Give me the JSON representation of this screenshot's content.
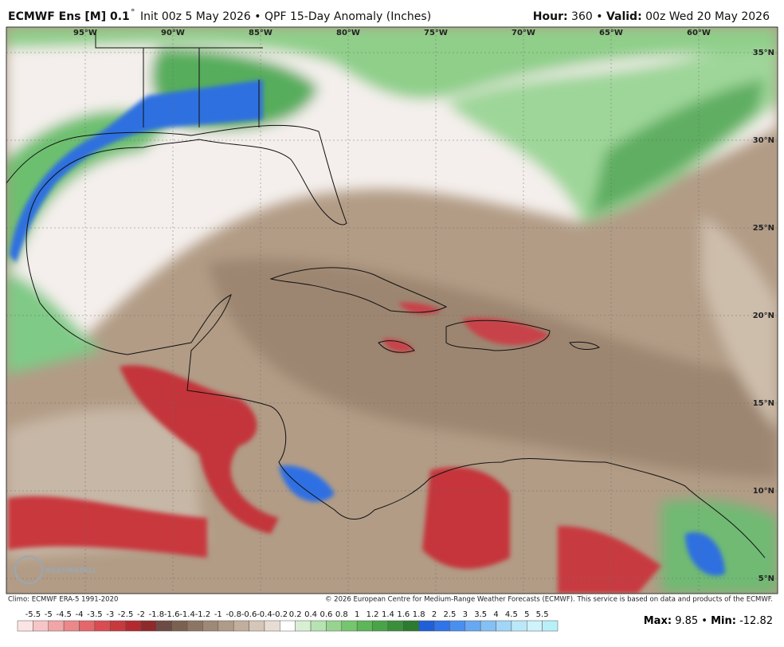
{
  "header": {
    "model": "ECMWF Ens [M] 0.1",
    "degree": "°",
    "init": "Init 00z 5 May 2026 • QPF 15-Day Anomaly (Inches)",
    "hour_label": "Hour:",
    "hour": "360 •",
    "valid_label": "Valid:",
    "valid": "00z Wed 20 May 2026"
  },
  "map": {
    "lon_labels": [
      "95°W",
      "90°W",
      "85°W",
      "80°W",
      "75°W",
      "70°W",
      "65°W",
      "60°W"
    ],
    "lat_labels": [
      "35°N",
      "30°N",
      "25°N",
      "20°N",
      "15°N",
      "10°N",
      "5°N"
    ],
    "logo": "WEATHERBELL"
  },
  "footer": {
    "climo": "Climo: ECMWF ERA-5 1991-2020",
    "copyright": "© 2026 European Centre for Medium-Range Weather Forecasts (ECMWF). This service is based on data and products of the ECMWF.",
    "max_label": "Max:",
    "max": "9.85 •",
    "min_label": "Min:",
    "min": "-12.82"
  },
  "colorbar": {
    "labels": [
      "-5.5",
      "-5",
      "-4.5",
      "-4",
      "-3.5",
      "-3",
      "-2.5",
      "-2",
      "-1.8",
      "-1.6",
      "-1.4",
      "-1.2",
      "-1",
      "-0.8",
      "-0.6",
      "-0.4",
      "-0.2",
      "0.2",
      "0.4",
      "0.6",
      "0.8",
      "1",
      "1.2",
      "1.4",
      "1.6",
      "1.8",
      "2",
      "2.5",
      "3",
      "3.5",
      "4",
      "4.5",
      "5",
      "5.5"
    ]
  }
}
